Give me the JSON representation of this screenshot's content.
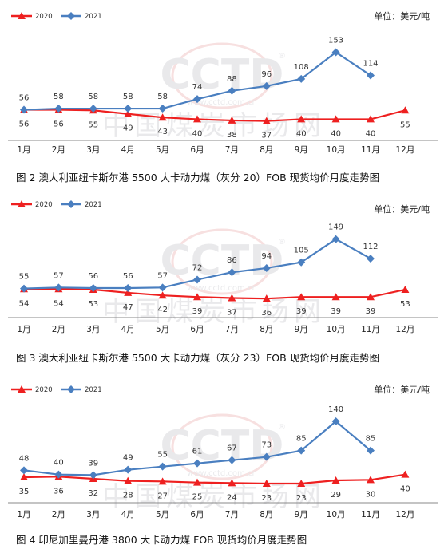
{
  "colors": {
    "s2020": "#ee2020",
    "s2021": "#4a7fc0",
    "watermark": "#d8d8dc",
    "watermark_red": "#f2c7c7"
  },
  "watermark": {
    "logo": "CCTD",
    "reg": "®",
    "cn": "中国煤炭市场网",
    "url": "www.cctd.com.cn"
  },
  "unit_label": "单位：美元/吨",
  "chart_data": [
    {
      "type": "line",
      "caption": "图 2   澳大利亚纽卡斯尔港 5500 大卡动力煤（灰分 20）FOB 现货均价月度走势图",
      "categories": [
        "1月",
        "2月",
        "3月",
        "4月",
        "5月",
        "6月",
        "7月",
        "8月",
        "9月",
        "10月",
        "11月",
        "12月"
      ],
      "series": [
        {
          "name": "2020",
          "values": [
            56,
            56,
            55,
            49,
            43,
            40,
            38,
            37,
            40,
            40,
            40,
            55
          ]
        },
        {
          "name": "2021",
          "values": [
            56,
            58,
            58,
            58,
            58,
            74,
            88,
            96,
            108,
            153,
            114,
            null
          ]
        }
      ],
      "ylim": [
        15,
        190
      ],
      "grid": false,
      "legend": "top-left"
    },
    {
      "type": "line",
      "caption": "图 3   澳大利亚纽卡斯尔港 5500 大卡动力煤（灰分 23）FOB 现货均价月度走势图",
      "categories": [
        "1月",
        "2月",
        "3月",
        "4月",
        "5月",
        "6月",
        "7月",
        "8月",
        "9月",
        "10月",
        "11月",
        "12月"
      ],
      "series": [
        {
          "name": "2020",
          "values": [
            54,
            54,
            53,
            47,
            42,
            39,
            37,
            36,
            39,
            39,
            39,
            53
          ]
        },
        {
          "name": "2021",
          "values": [
            55,
            57,
            56,
            56,
            57,
            72,
            86,
            94,
            105,
            149,
            112,
            null
          ]
        }
      ],
      "ylim": [
        15,
        185
      ],
      "grid": false,
      "legend": "top-left"
    },
    {
      "type": "line",
      "caption": "图 4    印尼加里曼丹港 3800 大卡动力煤 FOB 现货均价月度走势图",
      "categories": [
        "1月",
        "2月",
        "3月",
        "4月",
        "5月",
        "6月",
        "7月",
        "8月",
        "9月",
        "10月",
        "11月",
        "12月"
      ],
      "series": [
        {
          "name": "2020",
          "values": [
            35,
            36,
            32,
            28,
            27,
            25,
            24,
            23,
            23,
            29,
            30,
            40
          ]
        },
        {
          "name": "2021",
          "values": [
            48,
            40,
            39,
            49,
            55,
            61,
            67,
            73,
            85,
            140,
            85,
            null
          ]
        }
      ],
      "ylim": [
        5,
        170
      ],
      "grid": false,
      "legend": "top-left"
    }
  ]
}
